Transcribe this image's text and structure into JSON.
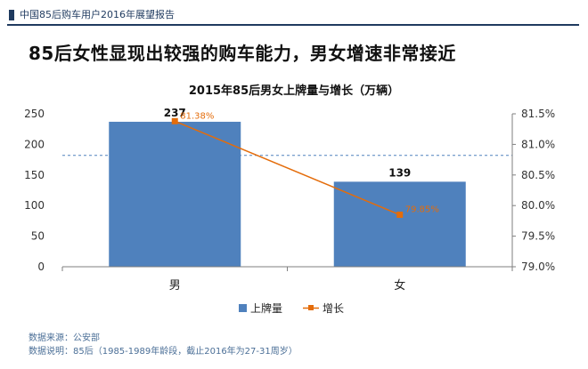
{
  "report": {
    "title": "中国85后购车用户2016年展望报告",
    "headline": "85后女性显现出较强的购车能力，男女增速非常接近"
  },
  "colors": {
    "bar": "#4f81bd",
    "line": "#e46c0a",
    "growth_label": "#e46c0a",
    "header": "#1f3a5f"
  },
  "footnotes": {
    "source": "数据来源：公安部",
    "note": "数据说明：85后（1985-1989年龄段，截止2016年为27-31周岁）"
  },
  "chart_data": {
    "type": "bar",
    "title": "2015年85后男女上牌量与增长（万辆）",
    "categories": [
      "男",
      "女"
    ],
    "series": [
      {
        "name": "上牌量",
        "type": "bar",
        "axis": "left",
        "values": [
          237,
          139
        ],
        "labels": [
          "237",
          "139"
        ]
      },
      {
        "name": "增长",
        "type": "line",
        "axis": "right",
        "values": [
          81.38,
          79.85
        ],
        "labels": [
          "81.38%",
          "79.85%"
        ]
      }
    ],
    "y_left": {
      "lim": [
        0,
        250
      ],
      "ticks": [
        "0",
        "50",
        "100",
        "150",
        "200",
        "250"
      ]
    },
    "y_right": {
      "lim": [
        79.0,
        81.5
      ],
      "ticks": [
        "79.0%",
        "79.5%",
        "80.0%",
        "80.5%",
        "81.0%",
        "81.5%"
      ]
    },
    "reference_line": {
      "axis": "left",
      "value": 182,
      "style": "dashed"
    },
    "legend": "bottom-center"
  }
}
